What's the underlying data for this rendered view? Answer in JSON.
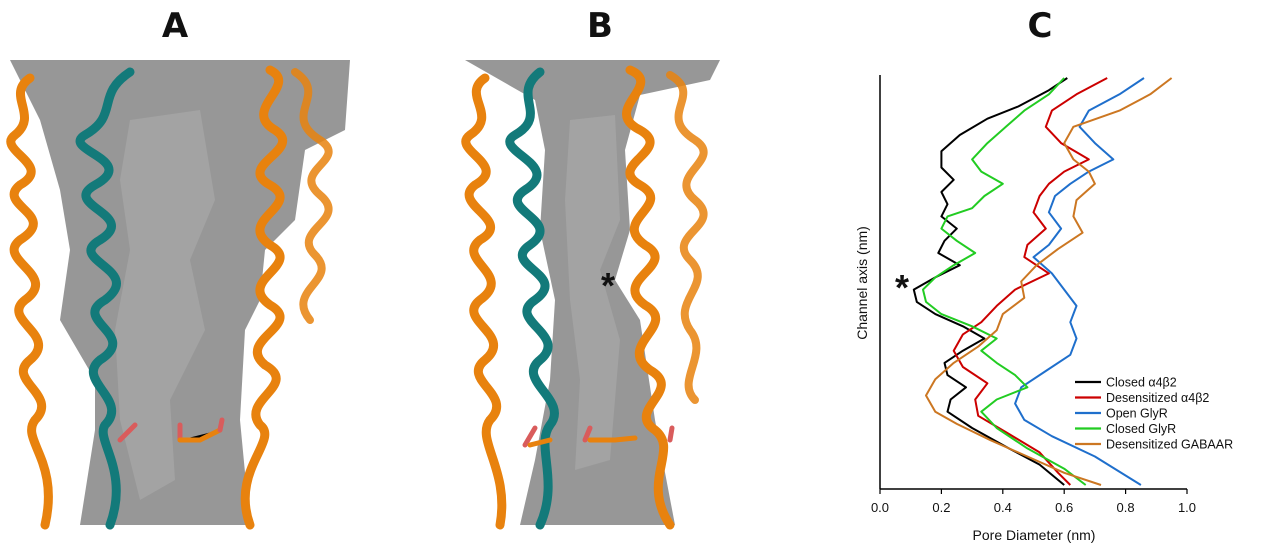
{
  "panels": {
    "a": {
      "label": "A"
    },
    "b": {
      "label": "B",
      "marker": "*"
    },
    "c": {
      "label": "C",
      "marker": "*"
    }
  },
  "chart_data": {
    "type": "line",
    "title": "",
    "xlabel": "Pore Diameter (nm)",
    "ylabel": "Channel axis (nm)",
    "xlim": [
      0,
      1.0
    ],
    "x_ticks": [
      "0.0",
      "0.2",
      "0.4",
      "0.6",
      "0.8",
      "1.0"
    ],
    "y_ticks": [],
    "ylim": [
      0,
      100
    ],
    "grid": false,
    "legend_position": "bottom-right",
    "series": [
      {
        "name": "Closed α4β2",
        "color": "#000000",
        "points": [
          [
            0.61,
            100
          ],
          [
            0.55,
            97
          ],
          [
            0.45,
            93
          ],
          [
            0.35,
            90
          ],
          [
            0.26,
            86
          ],
          [
            0.2,
            82
          ],
          [
            0.2,
            78
          ],
          [
            0.24,
            75
          ],
          [
            0.2,
            72
          ],
          [
            0.22,
            69
          ],
          [
            0.2,
            66
          ],
          [
            0.25,
            63
          ],
          [
            0.21,
            60
          ],
          [
            0.19,
            57
          ],
          [
            0.26,
            54
          ],
          [
            0.18,
            51
          ],
          [
            0.11,
            48
          ],
          [
            0.12,
            45
          ],
          [
            0.18,
            42
          ],
          [
            0.27,
            39
          ],
          [
            0.34,
            36
          ],
          [
            0.27,
            33
          ],
          [
            0.21,
            30
          ],
          [
            0.22,
            27
          ],
          [
            0.28,
            24
          ],
          [
            0.23,
            21
          ],
          [
            0.22,
            18
          ],
          [
            0.3,
            14
          ],
          [
            0.42,
            9
          ],
          [
            0.52,
            5
          ],
          [
            0.6,
            0
          ]
        ]
      },
      {
        "name": "Desensitized α4β2",
        "color": "#cc0000",
        "points": [
          [
            0.74,
            100
          ],
          [
            0.64,
            96
          ],
          [
            0.56,
            92
          ],
          [
            0.54,
            88
          ],
          [
            0.59,
            84
          ],
          [
            0.68,
            80
          ],
          [
            0.6,
            77
          ],
          [
            0.55,
            74
          ],
          [
            0.52,
            71
          ],
          [
            0.5,
            67
          ],
          [
            0.54,
            63
          ],
          [
            0.48,
            59
          ],
          [
            0.47,
            56
          ],
          [
            0.55,
            52
          ],
          [
            0.44,
            48
          ],
          [
            0.38,
            44
          ],
          [
            0.33,
            40
          ],
          [
            0.27,
            37
          ],
          [
            0.24,
            33
          ],
          [
            0.27,
            29
          ],
          [
            0.35,
            25
          ],
          [
            0.31,
            21
          ],
          [
            0.32,
            17
          ],
          [
            0.41,
            13
          ],
          [
            0.52,
            8
          ],
          [
            0.58,
            3
          ],
          [
            0.62,
            0
          ]
        ]
      },
      {
        "name": "Open GlyR",
        "color": "#1f6fcc",
        "points": [
          [
            0.86,
            100
          ],
          [
            0.78,
            96
          ],
          [
            0.68,
            92
          ],
          [
            0.65,
            88
          ],
          [
            0.7,
            84
          ],
          [
            0.76,
            80
          ],
          [
            0.68,
            77
          ],
          [
            0.62,
            74
          ],
          [
            0.57,
            71
          ],
          [
            0.55,
            67
          ],
          [
            0.59,
            63
          ],
          [
            0.55,
            59
          ],
          [
            0.5,
            56
          ],
          [
            0.56,
            52
          ],
          [
            0.6,
            48
          ],
          [
            0.64,
            44
          ],
          [
            0.62,
            40
          ],
          [
            0.64,
            36
          ],
          [
            0.62,
            32
          ],
          [
            0.54,
            28
          ],
          [
            0.46,
            24
          ],
          [
            0.44,
            20
          ],
          [
            0.47,
            16
          ],
          [
            0.56,
            12
          ],
          [
            0.7,
            7
          ],
          [
            0.85,
            0
          ]
        ]
      },
      {
        "name": "Closed GlyR",
        "color": "#22cc22",
        "points": [
          [
            0.6,
            100
          ],
          [
            0.55,
            96
          ],
          [
            0.47,
            92
          ],
          [
            0.41,
            88
          ],
          [
            0.35,
            84
          ],
          [
            0.3,
            80
          ],
          [
            0.33,
            77
          ],
          [
            0.4,
            74
          ],
          [
            0.34,
            71
          ],
          [
            0.3,
            68
          ],
          [
            0.22,
            66
          ],
          [
            0.2,
            63
          ],
          [
            0.25,
            60
          ],
          [
            0.31,
            57
          ],
          [
            0.24,
            54
          ],
          [
            0.18,
            51
          ],
          [
            0.14,
            48
          ],
          [
            0.15,
            45
          ],
          [
            0.2,
            42
          ],
          [
            0.3,
            39
          ],
          [
            0.38,
            36
          ],
          [
            0.33,
            33
          ],
          [
            0.38,
            30
          ],
          [
            0.44,
            27
          ],
          [
            0.48,
            24
          ],
          [
            0.38,
            21
          ],
          [
            0.33,
            18
          ],
          [
            0.38,
            14
          ],
          [
            0.48,
            9
          ],
          [
            0.6,
            4
          ],
          [
            0.67,
            0
          ]
        ]
      },
      {
        "name": "Desensitized GABAAR",
        "color": "#cc7722",
        "points": [
          [
            0.95,
            100
          ],
          [
            0.88,
            96
          ],
          [
            0.78,
            92
          ],
          [
            0.63,
            88
          ],
          [
            0.6,
            84
          ],
          [
            0.63,
            80
          ],
          [
            0.68,
            77
          ],
          [
            0.7,
            74
          ],
          [
            0.64,
            70
          ],
          [
            0.63,
            66
          ],
          [
            0.66,
            62
          ],
          [
            0.58,
            58
          ],
          [
            0.51,
            54
          ],
          [
            0.46,
            50
          ],
          [
            0.47,
            46
          ],
          [
            0.4,
            42
          ],
          [
            0.38,
            38
          ],
          [
            0.32,
            34
          ],
          [
            0.24,
            30
          ],
          [
            0.18,
            26
          ],
          [
            0.15,
            22
          ],
          [
            0.18,
            18
          ],
          [
            0.25,
            15
          ],
          [
            0.36,
            11
          ],
          [
            0.48,
            7
          ],
          [
            0.6,
            3
          ],
          [
            0.72,
            0
          ]
        ]
      }
    ],
    "annotation": "*"
  }
}
